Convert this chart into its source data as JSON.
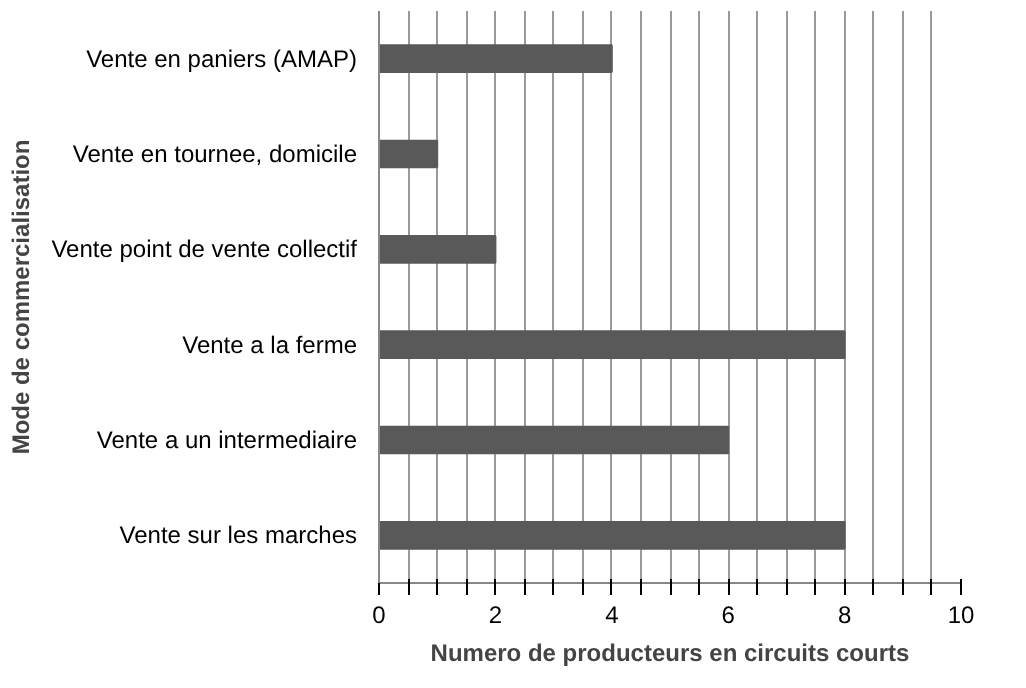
{
  "chart_data": {
    "type": "bar",
    "orientation": "horizontal",
    "xlabel": "Numero de producteurs en circuits courts",
    "ylabel": "Mode de commercialisation",
    "categories": [
      "Vente en paniers (AMAP)",
      "Vente en tournee, domicile",
      "Vente point de vente collectif",
      "Vente a la ferme",
      "Vente a un intermediaire",
      "Vente sur les marches"
    ],
    "values": [
      4,
      1,
      2,
      8,
      6,
      8
    ],
    "color": "#595959",
    "xlim": [
      0,
      10
    ],
    "xticks": [
      0,
      {
        "value": 0.5,
        "label": null
      },
      {
        "value": 1,
        "label": null
      },
      {
        "value": 1.5,
        "label": null
      },
      2,
      {
        "value": 2.5,
        "label": null
      },
      {
        "value": 3,
        "label": null
      },
      {
        "value": 3.5,
        "label": null
      },
      4,
      {
        "value": 4.5,
        "label": null
      },
      {
        "value": 5,
        "label": null
      },
      {
        "value": 5.5,
        "label": null
      },
      6,
      {
        "value": 6.5,
        "label": null
      },
      {
        "value": 7,
        "label": null
      },
      {
        "value": 7.5,
        "label": null
      },
      8,
      {
        "value": 8.5,
        "label": null
      },
      {
        "value": 9,
        "label": null
      },
      {
        "value": 9.5,
        "label": null
      },
      10
    ],
    "grid": "x"
  }
}
